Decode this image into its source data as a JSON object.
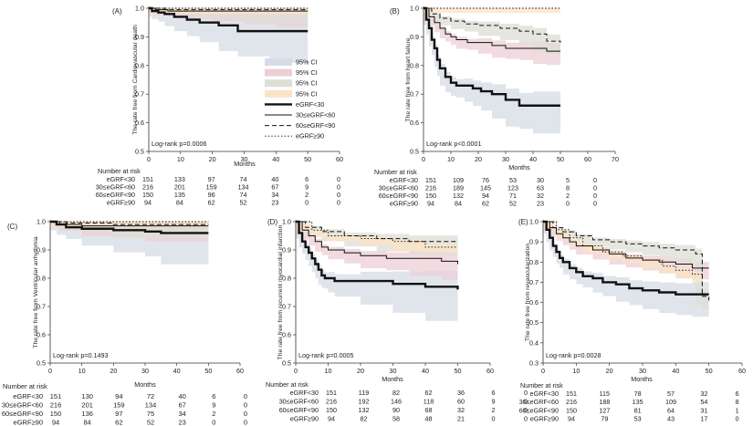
{
  "colors": {
    "ci_lt30": "#d5dce6",
    "ci_30_60": "#eccfd6",
    "ci_60_90": "#ddded6",
    "ci_ge90": "#fce3c6",
    "line": "#111111"
  },
  "legend": [
    {
      "key": "ci_lt30",
      "label": "95% CI",
      "kind": "ci"
    },
    {
      "key": "ci_30_60",
      "label": "95% CI",
      "kind": "ci"
    },
    {
      "key": "ci_60_90",
      "label": "95% CI",
      "kind": "ci"
    },
    {
      "key": "ci_ge90",
      "label": "95% CI",
      "kind": "ci"
    },
    {
      "key": "lt30",
      "label": "eGRF<30",
      "kind": "line"
    },
    {
      "key": "30_60",
      "label": "30≤eGRF<60",
      "kind": "line"
    },
    {
      "key": "60_90",
      "label": "60≤eGRF<90",
      "kind": "line"
    },
    {
      "key": "ge90",
      "label": "eGRF≥90",
      "kind": "line"
    }
  ],
  "chart_data": [
    {
      "type": "line",
      "id": "A",
      "panel_label": "(A)",
      "ylabel": "The rate free from Cardiovascular death",
      "xlabel": "Months",
      "xlim": [
        0,
        60
      ],
      "ylim": [
        0.5,
        1.0
      ],
      "xticks": [
        0,
        10,
        20,
        30,
        40,
        50,
        60
      ],
      "yticks": [
        0.5,
        0.6,
        0.7,
        0.8,
        0.9,
        1.0
      ],
      "logrank": "Log-rank p=0.0006",
      "series": [
        {
          "name": "eGRF<30",
          "style": "thick",
          "x": [
            0,
            1,
            3,
            5,
            8,
            12,
            16,
            22,
            28,
            38,
            50
          ],
          "y": [
            1.0,
            0.99,
            0.985,
            0.98,
            0.97,
            0.96,
            0.95,
            0.94,
            0.92,
            0.92,
            0.92
          ]
        },
        {
          "name": "30≤eGRF<60",
          "style": "solid",
          "x": [
            0,
            2,
            6,
            12,
            20,
            30,
            40,
            50
          ],
          "y": [
            1.0,
            0.995,
            0.99,
            0.99,
            0.99,
            0.99,
            0.99,
            0.99
          ]
        },
        {
          "name": "60≤eGRF<90",
          "style": "dash",
          "x": [
            0,
            5,
            15,
            30,
            50
          ],
          "y": [
            1.0,
            0.995,
            0.995,
            0.995,
            0.995
          ]
        },
        {
          "name": "eGRF≥90",
          "style": "dot",
          "x": [
            0,
            50
          ],
          "y": [
            1.0,
            1.0
          ]
        }
      ],
      "risk_header": "Number at risk",
      "risk_rows": [
        {
          "label": "eGRF<30",
          "values": [
            "151",
            "133",
            "97",
            "74",
            "40",
            "6",
            "0"
          ]
        },
        {
          "label": "30≤eGRF<60",
          "values": [
            "216",
            "201",
            "159",
            "134",
            "67",
            "9",
            "0"
          ]
        },
        {
          "label": "60≤eGRF<90",
          "values": [
            "150",
            "135",
            "96",
            "74",
            "34",
            "2",
            "0"
          ]
        },
        {
          "label": "eGRF≥90",
          "values": [
            "94",
            "84",
            "62",
            "52",
            "23",
            "0",
            "0"
          ]
        }
      ]
    },
    {
      "type": "line",
      "id": "B",
      "panel_label": "(B)",
      "ylabel": "The rate free from heart failure",
      "xlabel": "Months",
      "xlim": [
        0,
        70
      ],
      "ylim": [
        0.5,
        1.0
      ],
      "xticks": [
        0,
        10,
        20,
        30,
        40,
        50,
        60,
        70
      ],
      "yticks": [
        0.5,
        0.6,
        0.7,
        0.8,
        0.9,
        1.0
      ],
      "logrank": "Log-rank p<0.0001",
      "series": [
        {
          "name": "eGRF<30",
          "style": "thick",
          "x": [
            0,
            1,
            2,
            3,
            4,
            5,
            6,
            8,
            10,
            12,
            15,
            18,
            21,
            25,
            30,
            35,
            40,
            50
          ],
          "y": [
            1.0,
            0.96,
            0.93,
            0.89,
            0.86,
            0.82,
            0.79,
            0.76,
            0.74,
            0.73,
            0.73,
            0.72,
            0.71,
            0.7,
            0.68,
            0.66,
            0.66,
            0.66
          ]
        },
        {
          "name": "30≤eGRF<60",
          "style": "solid",
          "x": [
            0,
            2,
            4,
            6,
            8,
            10,
            12,
            16,
            20,
            25,
            30,
            35,
            40,
            45,
            50
          ],
          "y": [
            1.0,
            0.97,
            0.95,
            0.93,
            0.91,
            0.9,
            0.89,
            0.88,
            0.88,
            0.87,
            0.86,
            0.86,
            0.86,
            0.85,
            0.85
          ]
        },
        {
          "name": "60≤eGRF<90",
          "style": "dash",
          "x": [
            0,
            3,
            6,
            10,
            15,
            20,
            28,
            35,
            40,
            45,
            50
          ],
          "y": [
            1.0,
            0.98,
            0.965,
            0.955,
            0.945,
            0.94,
            0.93,
            0.92,
            0.91,
            0.885,
            0.88
          ]
        },
        {
          "name": "eGRF≥90",
          "style": "dot",
          "x": [
            0,
            50
          ],
          "y": [
            1.0,
            1.0
          ]
        }
      ],
      "risk_header": "Number at risk",
      "risk_rows": [
        {
          "label": "eGRF<30",
          "values": [
            "151",
            "109",
            "76",
            "53",
            "30",
            "5",
            "0"
          ]
        },
        {
          "label": "30≤eGRF<60",
          "values": [
            "216",
            "189",
            "145",
            "123",
            "63",
            "8",
            "0"
          ]
        },
        {
          "label": "60≤eGRF<90",
          "values": [
            "150",
            "132",
            "94",
            "71",
            "32",
            "2",
            "0"
          ]
        },
        {
          "label": "eGRF≥90",
          "values": [
            "94",
            "84",
            "62",
            "52",
            "23",
            "0",
            "0"
          ]
        }
      ]
    },
    {
      "type": "line",
      "id": "C",
      "panel_label": "(C)",
      "ylabel": "The rate free from Ventricular arrhythmia",
      "xlabel": "Months",
      "xlim": [
        0,
        60
      ],
      "ylim": [
        0.5,
        1.0
      ],
      "xticks": [
        0,
        10,
        20,
        30,
        40,
        50,
        60
      ],
      "yticks": [
        0.5,
        0.6,
        0.7,
        0.8,
        0.9,
        1.0
      ],
      "logrank": "Log-rank p=0.1493",
      "series": [
        {
          "name": "eGRF<30",
          "style": "thick",
          "x": [
            0,
            2,
            5,
            10,
            20,
            30,
            35,
            50
          ],
          "y": [
            1.0,
            0.99,
            0.98,
            0.975,
            0.97,
            0.965,
            0.96,
            0.96
          ]
        },
        {
          "name": "30≤eGRF<60",
          "style": "solid",
          "x": [
            0,
            3,
            10,
            30,
            50
          ],
          "y": [
            1.0,
            0.99,
            0.985,
            0.985,
            0.985
          ]
        },
        {
          "name": "60≤eGRF<90",
          "style": "dash",
          "x": [
            0,
            5,
            20,
            50
          ],
          "y": [
            1.0,
            0.995,
            0.99,
            0.99
          ]
        },
        {
          "name": "eGRF≥90",
          "style": "dot",
          "x": [
            0,
            50
          ],
          "y": [
            1.0,
            1.0
          ]
        }
      ],
      "risk_header": "Number at risk",
      "risk_rows": [
        {
          "label": "eGRF<30",
          "values": [
            "151",
            "130",
            "94",
            "72",
            "40",
            "6",
            "0"
          ]
        },
        {
          "label": "30≤eGRF<60",
          "values": [
            "216",
            "201",
            "159",
            "134",
            "67",
            "9",
            "0"
          ]
        },
        {
          "label": "60≤eGRF<90",
          "values": [
            "150",
            "136",
            "97",
            "75",
            "34",
            "2",
            "0"
          ]
        },
        {
          "label": "eGRF≥90",
          "values": [
            "94",
            "84",
            "62",
            "52",
            "23",
            "0",
            "0"
          ]
        }
      ]
    },
    {
      "type": "line",
      "id": "D",
      "panel_label": "(D)",
      "ylabel": "The rate free from recurrent myocardial infarction",
      "xlabel": "Months",
      "xlim": [
        0,
        60
      ],
      "ylim": [
        0.5,
        1.0
      ],
      "xticks": [
        0,
        10,
        20,
        30,
        40,
        50,
        60
      ],
      "yticks": [
        0.5,
        0.6,
        0.7,
        0.8,
        0.9,
        1.0
      ],
      "logrank": "Log-rank p=0.0005",
      "series": [
        {
          "name": "eGRF<30",
          "style": "thick",
          "x": [
            0,
            1,
            2,
            3,
            4,
            5,
            6,
            7,
            8,
            9,
            10,
            12,
            20,
            30,
            40,
            50
          ],
          "y": [
            1.0,
            0.96,
            0.93,
            0.91,
            0.89,
            0.87,
            0.85,
            0.83,
            0.81,
            0.8,
            0.8,
            0.79,
            0.79,
            0.78,
            0.77,
            0.76
          ]
        },
        {
          "name": "30≤eGRF<60",
          "style": "solid",
          "x": [
            0,
            2,
            4,
            6,
            8,
            10,
            15,
            20,
            28,
            35,
            45,
            50
          ],
          "y": [
            1.0,
            0.97,
            0.95,
            0.93,
            0.91,
            0.9,
            0.89,
            0.88,
            0.87,
            0.87,
            0.86,
            0.85
          ]
        },
        {
          "name": "60≤eGRF<90",
          "style": "dash",
          "x": [
            0,
            3,
            8,
            15,
            25,
            35,
            50
          ],
          "y": [
            1.0,
            0.98,
            0.965,
            0.95,
            0.94,
            0.93,
            0.93
          ]
        },
        {
          "name": "eGRF≥90",
          "style": "dot",
          "x": [
            0,
            5,
            10,
            20,
            30,
            40,
            50
          ],
          "y": [
            1.0,
            0.97,
            0.95,
            0.94,
            0.93,
            0.91,
            0.91
          ]
        }
      ],
      "risk_header": "Number at risk",
      "risk_rows": [
        {
          "label": "eGRF<30",
          "values": [
            "151",
            "119",
            "82",
            "62",
            "36",
            "6",
            "0"
          ]
        },
        {
          "label": "30≤eGRF<60",
          "values": [
            "216",
            "192",
            "146",
            "118",
            "60",
            "9",
            "0"
          ]
        },
        {
          "label": "60≤eGRF<90",
          "values": [
            "150",
            "132",
            "90",
            "68",
            "32",
            "2",
            "0"
          ]
        },
        {
          "label": "eGRF≥90",
          "values": [
            "94",
            "82",
            "58",
            "48",
            "21",
            "0",
            "0"
          ]
        }
      ]
    },
    {
      "type": "line",
      "id": "E",
      "panel_label": "(E)",
      "ylabel": "The rate free from revascularization",
      "xlabel": "Months",
      "xlim": [
        0,
        60
      ],
      "ylim": [
        0.3,
        1.0
      ],
      "xticks": [
        0,
        10,
        20,
        30,
        40,
        50,
        60
      ],
      "yticks": [
        0.3,
        0.4,
        0.5,
        0.6,
        0.7,
        0.8,
        0.9,
        1.0
      ],
      "logrank": "Log-rank p=0.0028",
      "series": [
        {
          "name": "eGRF<30",
          "style": "thick",
          "x": [
            0,
            1,
            2,
            3,
            4,
            5,
            6,
            8,
            10,
            12,
            15,
            18,
            22,
            26,
            30,
            35,
            40,
            45,
            50
          ],
          "y": [
            1.0,
            0.96,
            0.92,
            0.88,
            0.85,
            0.82,
            0.8,
            0.77,
            0.75,
            0.73,
            0.72,
            0.7,
            0.69,
            0.67,
            0.66,
            0.65,
            0.64,
            0.64,
            0.64
          ]
        },
        {
          "name": "30≤eGRF<60",
          "style": "solid",
          "x": [
            0,
            2,
            4,
            6,
            8,
            10,
            15,
            20,
            25,
            30,
            35,
            40,
            45,
            50
          ],
          "y": [
            1.0,
            0.97,
            0.94,
            0.92,
            0.9,
            0.88,
            0.86,
            0.84,
            0.82,
            0.81,
            0.8,
            0.79,
            0.77,
            0.77
          ]
        },
        {
          "name": "60≤eGRF<90",
          "style": "dash",
          "x": [
            0,
            3,
            6,
            10,
            15,
            20,
            25,
            30,
            35,
            40,
            46,
            48,
            50
          ],
          "y": [
            1.0,
            0.97,
            0.95,
            0.93,
            0.91,
            0.9,
            0.89,
            0.88,
            0.87,
            0.86,
            0.84,
            0.63,
            0.61
          ]
        },
        {
          "name": "eGRF≥90",
          "style": "dot",
          "x": [
            0,
            4,
            8,
            12,
            18,
            24,
            30,
            36,
            40,
            45,
            48
          ],
          "y": [
            1.0,
            0.96,
            0.92,
            0.88,
            0.85,
            0.83,
            0.81,
            0.78,
            0.76,
            0.74,
            0.72
          ]
        }
      ],
      "risk_header": "Number at risk",
      "risk_rows": [
        {
          "label": "eGRF<30",
          "values": [
            "151",
            "115",
            "78",
            "57",
            "32",
            "6",
            "0"
          ]
        },
        {
          "label": "30≤eGRF<60",
          "values": [
            "216",
            "188",
            "135",
            "109",
            "54",
            "8",
            "0"
          ]
        },
        {
          "label": "60≤eGRF<90",
          "values": [
            "150",
            "127",
            "81",
            "64",
            "31",
            "1",
            "0"
          ]
        },
        {
          "label": "eGRF≥90",
          "values": [
            "94",
            "79",
            "53",
            "43",
            "17",
            "0",
            "0"
          ]
        }
      ]
    }
  ]
}
